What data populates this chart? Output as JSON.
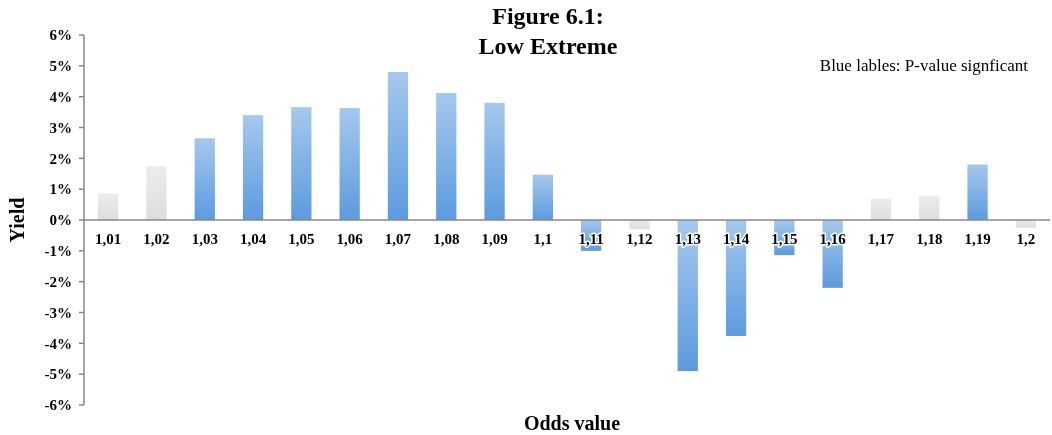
{
  "chart_data": {
    "type": "bar",
    "title": "Figure 6.1:\nLow Extreme",
    "xlabel": "Odds value",
    "ylabel": "Yield",
    "annotations": [
      "Blue lables: P-value signficant"
    ],
    "categories": [
      "1,01",
      "1,02",
      "1,03",
      "1,04",
      "1,05",
      "1,06",
      "1,07",
      "1,08",
      "1,09",
      "1,1",
      "1,11",
      "1,12",
      "1,13",
      "1,14",
      "1,15",
      "1,16",
      "1,17",
      "1,18",
      "1,19",
      "1,2"
    ],
    "values": [
      0.86,
      1.74,
      2.65,
      3.4,
      3.66,
      3.63,
      4.8,
      4.12,
      3.8,
      1.47,
      -1.0,
      -0.3,
      -4.9,
      -3.76,
      -1.14,
      -2.2,
      0.69,
      0.79,
      1.8,
      -0.25
    ],
    "colors": [
      "#dddddd",
      "#dddddd",
      "#5b9bdf",
      "#5b9bdf",
      "#5b9bdf",
      "#5b9bdf",
      "#5b9bdf",
      "#5b9bdf",
      "#5b9bdf",
      "#5b9bdf",
      "#5b9bdf",
      "#dddddd",
      "#5b9bdf",
      "#5b9bdf",
      "#5b9bdf",
      "#5b9bdf",
      "#dddddd",
      "#dddddd",
      "#5b9bdf",
      "#dddddd"
    ],
    "ylim": [
      -6,
      6
    ],
    "yticks": [
      {
        "value": -6,
        "label": "-6%"
      },
      {
        "value": -5,
        "label": "-5%"
      },
      {
        "value": -4,
        "label": "-4%"
      },
      {
        "value": -3,
        "label": "-3%"
      },
      {
        "value": -2,
        "label": "-2%"
      },
      {
        "value": -1,
        "label": "-1%"
      },
      {
        "value": 0,
        "label": "0%"
      },
      {
        "value": 1,
        "label": "1%"
      },
      {
        "value": 2,
        "label": "2%"
      },
      {
        "value": 3,
        "label": "3%"
      },
      {
        "value": 4,
        "label": "4%"
      },
      {
        "value": 5,
        "label": "5%"
      },
      {
        "value": 6,
        "label": "6%"
      }
    ],
    "grid": false
  }
}
